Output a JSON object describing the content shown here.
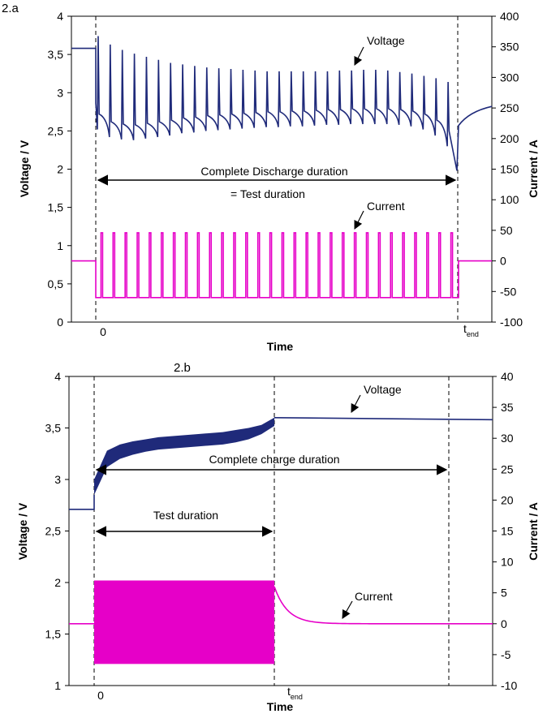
{
  "chart_data": [
    {
      "type": "line",
      "panel_label": "2.a",
      "xlabel": "Time",
      "ylabel_left": "Voltage / V",
      "ylabel_right": "Current / A",
      "ylim_left": [
        0,
        4
      ],
      "ylim_right": [
        -100,
        400
      ],
      "yticks_left": [
        "0",
        "0,5",
        "1",
        "1,5",
        "2",
        "2,5",
        "3",
        "3,5",
        "4"
      ],
      "yticks_right": [
        "-100",
        "-50",
        "0",
        "50",
        "100",
        "150",
        "200",
        "250",
        "300",
        "350",
        "400"
      ],
      "xticks": {
        "start": "0",
        "end": "t",
        "end_sub": "end"
      },
      "grid": false,
      "colors": {
        "voltage": "#1f2a7a",
        "current": "#e600c8"
      },
      "pulse_count": 30,
      "series": [
        {
          "name": "Voltage",
          "axis": "left",
          "rest_before": 3.58,
          "pulse_peaks": [
            3.74,
            3.63,
            3.56,
            3.51,
            3.47,
            3.43,
            3.39,
            3.37,
            3.35,
            3.33,
            3.32,
            3.31,
            3.3,
            3.29,
            3.28,
            3.28,
            3.28,
            3.28,
            3.28,
            3.28,
            3.29,
            3.29,
            3.3,
            3.3,
            3.29,
            3.27,
            3.25,
            3.22,
            3.19,
            3.14
          ],
          "pulse_troughs": [
            2.52,
            2.42,
            2.39,
            2.38,
            2.4,
            2.42,
            2.44,
            2.47,
            2.48,
            2.5,
            2.51,
            2.52,
            2.53,
            2.54,
            2.55,
            2.55,
            2.56,
            2.56,
            2.57,
            2.58,
            2.58,
            2.59,
            2.59,
            2.59,
            2.59,
            2.58,
            2.56,
            2.52,
            2.44,
            2.3
          ],
          "end_min": 1.98,
          "rest_after": [
            2.57,
            2.7,
            2.78,
            2.82
          ]
        },
        {
          "name": "Current",
          "axis": "right",
          "rest": 0,
          "pulse_high": 46,
          "pulse_low": -60
        }
      ],
      "annotations": {
        "voltage_label": "Voltage",
        "current_label": "Current",
        "span_line1": "Complete Discharge duration",
        "span_line2": "= Test duration"
      }
    },
    {
      "type": "line",
      "panel_label": "2.b",
      "xlabel": "Time",
      "ylabel_left": "Voltage / V",
      "ylabel_right": "Current / A",
      "ylim_left": [
        1,
        4
      ],
      "ylim_right": [
        -10,
        40
      ],
      "yticks_left": [
        "1",
        "1,5",
        "2",
        "2,5",
        "3",
        "3,5",
        "4"
      ],
      "yticks_right": [
        "-10",
        "-5",
        "0",
        "5",
        "10",
        "15",
        "20",
        "25",
        "30",
        "35",
        "40"
      ],
      "xticks": {
        "start": "0",
        "end": "t",
        "end_sub": "end"
      },
      "grid": false,
      "colors": {
        "voltage": "#1f2a7a",
        "current": "#e600c8"
      },
      "series": [
        {
          "name": "Voltage",
          "axis": "left",
          "rest_before": 2.71,
          "band_lower": [
            2.85,
            3.12,
            3.2,
            3.24,
            3.27,
            3.29,
            3.3,
            3.31,
            3.32,
            3.33,
            3.34,
            3.36,
            3.39,
            3.44,
            3.52
          ],
          "band_upper": [
            3.0,
            3.28,
            3.34,
            3.37,
            3.39,
            3.41,
            3.42,
            3.43,
            3.44,
            3.45,
            3.46,
            3.48,
            3.5,
            3.53,
            3.6
          ],
          "plateau": 3.6,
          "plateau_end": 3.58
        },
        {
          "name": "Current",
          "axis": "right",
          "rest": 0,
          "band_high": 7,
          "band_low": -6.5,
          "after_test_start": 6,
          "relax_time_constant_fraction": 0.06
        }
      ],
      "annotations": {
        "voltage_label": "Voltage",
        "current_label": "Current",
        "span_charge": "Complete charge duration",
        "span_test": "Test duration"
      }
    }
  ]
}
